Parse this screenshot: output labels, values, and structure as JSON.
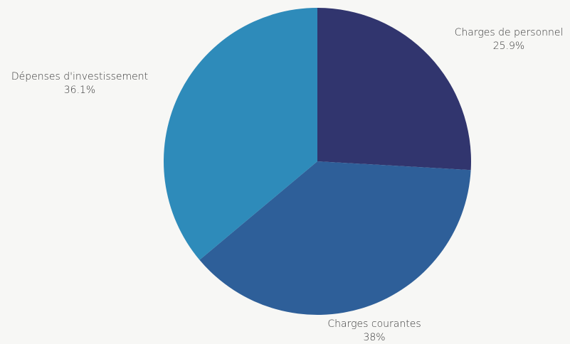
{
  "chart_data": {
    "type": "pie",
    "title": "",
    "slices": [
      {
        "name": "Charges de personnel",
        "value": 25.9,
        "label": "25.9%",
        "color": "#31356e"
      },
      {
        "name": "Charges courantes",
        "value": 38,
        "label": "38%",
        "color": "#2e5f99"
      },
      {
        "name": "Dépenses d'investissement",
        "value": 36.1,
        "label": "36.1%",
        "color": "#2e8bba"
      }
    ],
    "start_angle": "12 o'clock",
    "direction": "clockwise",
    "legend": "none",
    "labels": "outside"
  }
}
